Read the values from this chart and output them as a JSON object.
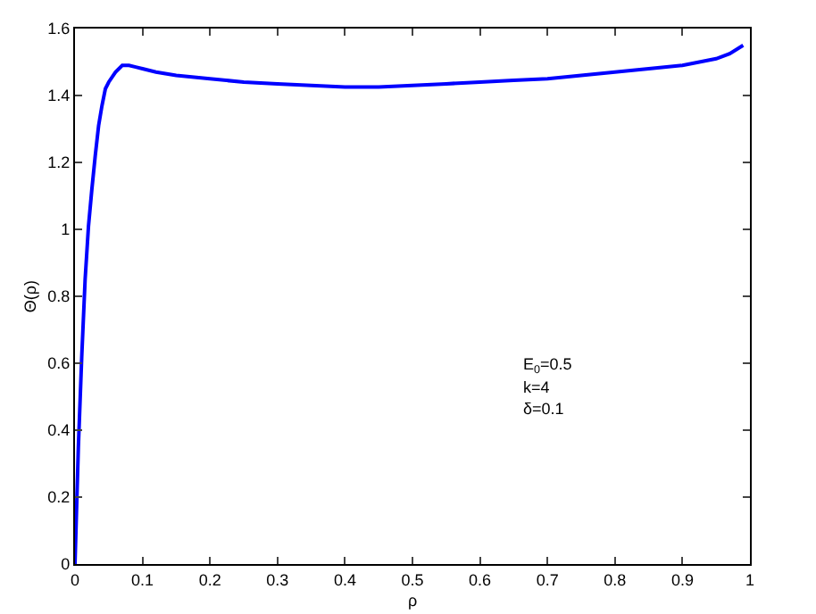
{
  "chart_data": {
    "type": "line",
    "xlabel": "ρ",
    "ylabel": "Θ(ρ)",
    "x": [
      0,
      0.005,
      0.01,
      0.015,
      0.02,
      0.025,
      0.03,
      0.035,
      0.04,
      0.045,
      0.05,
      0.06,
      0.07,
      0.08,
      0.09,
      0.1,
      0.12,
      0.15,
      0.2,
      0.25,
      0.3,
      0.35,
      0.4,
      0.45,
      0.5,
      0.55,
      0.6,
      0.65,
      0.7,
      0.75,
      0.8,
      0.85,
      0.9,
      0.95,
      0.97,
      0.99
    ],
    "series": [
      {
        "color": "#0000ff",
        "values": [
          0,
          0.35,
          0.62,
          0.85,
          1.01,
          1.12,
          1.22,
          1.31,
          1.37,
          1.42,
          1.44,
          1.47,
          1.49,
          1.49,
          1.485,
          1.48,
          1.47,
          1.46,
          1.45,
          1.44,
          1.435,
          1.43,
          1.425,
          1.425,
          1.43,
          1.435,
          1.44,
          1.445,
          1.45,
          1.46,
          1.47,
          1.48,
          1.49,
          1.51,
          1.525,
          1.55
        ]
      }
    ],
    "xlim": [
      0,
      1
    ],
    "xticks": [
      0,
      0.1,
      0.2,
      0.3,
      0.4,
      0.5,
      0.6,
      0.7,
      0.8,
      0.9,
      1
    ],
    "ylim": [
      0,
      1.6
    ],
    "yticks": [
      0,
      0.2,
      0.4,
      0.6,
      0.8,
      1,
      1.2,
      1.4,
      1.6
    ],
    "marker": "none",
    "line_style": "solid",
    "annotations": [
      "E$_{0}$=0.5",
      "k=4",
      "δ=0.1"
    ]
  }
}
